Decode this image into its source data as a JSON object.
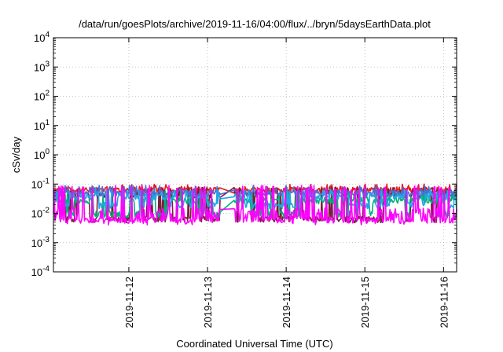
{
  "chart_data": {
    "type": "line",
    "title": "/data/run/goesPlots/archive/2019-11-16/04:00/flux/../bryn/5daysEarthData.plot",
    "xlabel": "Coordinated Universal Time (UTC)",
    "ylabel": "cSv/day",
    "yscale": "log",
    "ylim": [
      0.0001,
      10000
    ],
    "xlim": [
      "2019-11-11T01:00",
      "2019-11-16T04:00"
    ],
    "y_ticks": [
      {
        "base": "10",
        "exp": "-4",
        "value": 0.0001
      },
      {
        "base": "10",
        "exp": "-3",
        "value": 0.001
      },
      {
        "base": "10",
        "exp": "-2",
        "value": 0.01
      },
      {
        "base": "10",
        "exp": "-1",
        "value": 0.1
      },
      {
        "base": "10",
        "exp": "0",
        "value": 1
      },
      {
        "base": "10",
        "exp": "1",
        "value": 10
      },
      {
        "base": "10",
        "exp": "2",
        "value": 100
      },
      {
        "base": "10",
        "exp": "3",
        "value": 1000
      },
      {
        "base": "10",
        "exp": "4",
        "value": 10000
      }
    ],
    "x_ticks": [
      {
        "label": "2019-11-12",
        "date": "2019-11-12T00:00"
      },
      {
        "label": "2019-11-13",
        "date": "2019-11-13T00:00"
      },
      {
        "label": "2019-11-14",
        "date": "2019-11-14T00:00"
      },
      {
        "label": "2019-11-15",
        "date": "2019-11-15T00:00"
      },
      {
        "label": "2019-11-16",
        "date": "2019-11-16T00:00"
      }
    ],
    "gap": [
      "2019-11-13T04:00",
      "2019-11-13T08:00"
    ],
    "grid": true,
    "legend": "none",
    "series": [
      {
        "color": "#e41a1c",
        "base": 0.062,
        "low": 0.022,
        "high": 0.1
      },
      {
        "color": "#7a1f3d",
        "base": 0.045,
        "low": 0.006,
        "high": 0.08
      },
      {
        "color": "#00b27a",
        "base": 0.028,
        "low": 0.009,
        "high": 0.06
      },
      {
        "color": "#4a6fd4",
        "base": 0.05,
        "low": 0.02,
        "high": 0.09
      },
      {
        "color": "#22a6e6",
        "base": 0.038,
        "low": 0.018,
        "high": 0.07
      },
      {
        "color": "#ff00ff",
        "base": 0.012,
        "low": 0.005,
        "high": 0.09
      }
    ]
  }
}
